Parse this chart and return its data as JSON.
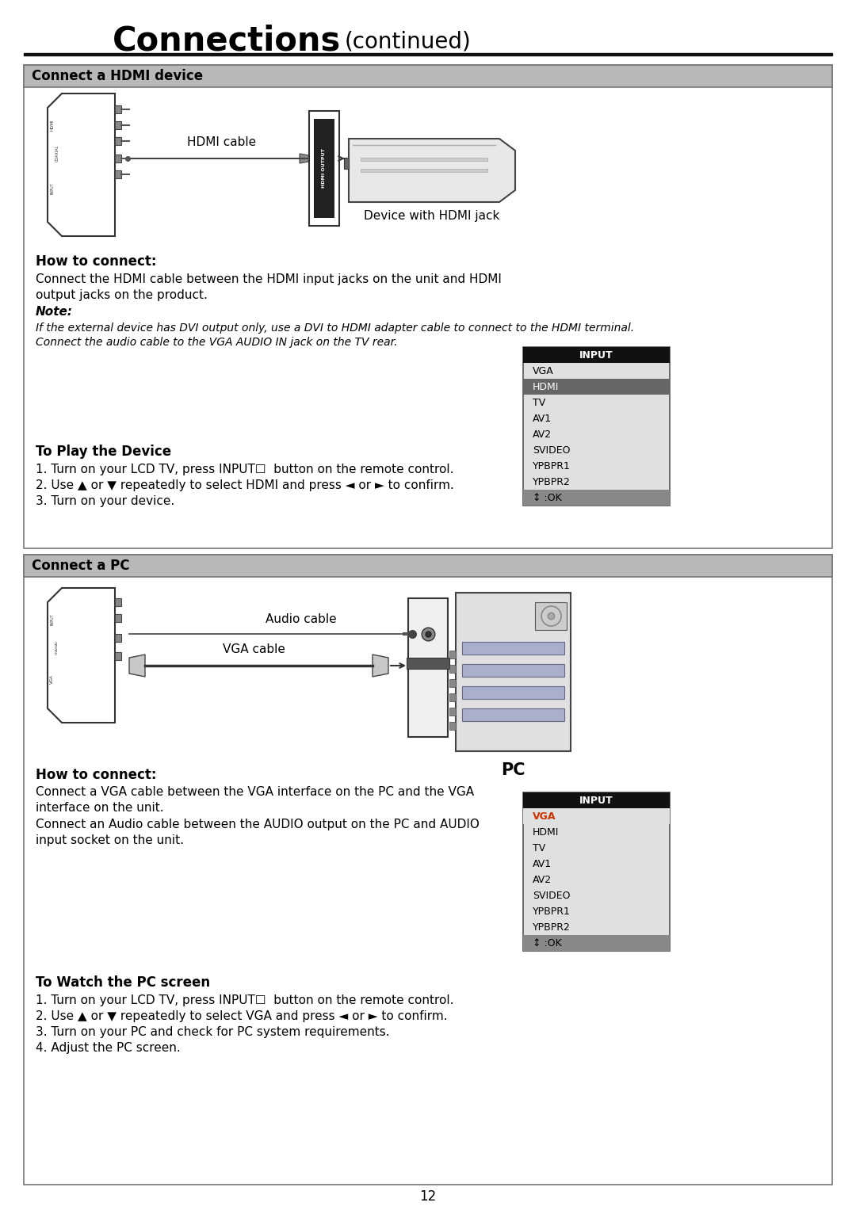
{
  "title_main": "Connections",
  "title_sub": "(continued)",
  "section1_header": "Connect a HDMI device",
  "section2_header": "Connect a PC",
  "hdmi_cable_label": "HDMI cable",
  "device_label": "Device with HDMI jack",
  "how_to_connect1_title": "How to connect:",
  "how_to_connect1_line1": "Connect the HDMI cable between the HDMI input jacks on the unit and HDMI",
  "how_to_connect1_line2": "output jacks on the product.",
  "note_title": "Note:",
  "note_line1": "If the external device has DVI output only, use a DVI to HDMI adapter cable to connect to the HDMI terminal.",
  "note_line2": "Connect the audio cable to the VGA AUDIO IN jack on the TV rear.",
  "to_play_title": "To Play the Device",
  "to_play_step1": "1. Turn on your LCD TV, press INPUT☐  button on the remote control.",
  "to_play_step2": "2. Use ▲ or ▼ repeatedly to select HDMI and press ◄ or ► to confirm.",
  "to_play_step3": "3. Turn on your device.",
  "input_items": [
    "INPUT",
    "VGA",
    "HDMI",
    "TV",
    "AV1",
    "AV2",
    "SVIDEO",
    "YPBPR1",
    "YPBPR2",
    "↕ :OK"
  ],
  "hdmi_highlight": "HDMI",
  "vga_highlight": "VGA",
  "audio_cable_label": "Audio cable",
  "vga_cable_label": "VGA cable",
  "pc_label": "PC",
  "how_to_connect2_title": "How to connect:",
  "how_to_connect2_line1": "Connect a VGA cable between the VGA interface on the PC and the VGA",
  "how_to_connect2_line2": "interface on the unit.",
  "how_to_connect2_line3": "Connect an Audio cable between the AUDIO output on the PC and AUDIO",
  "how_to_connect2_line4": "input socket on the unit.",
  "to_watch_title": "To Watch the PC screen",
  "to_watch_step1": "1. Turn on your LCD TV, press INPUT☐  button on the remote control.",
  "to_watch_step2": "2. Use ▲ or ▼ repeatedly to select VGA and press ◄ or ► to confirm.",
  "to_watch_step3": "3. Turn on your PC and check for PC system requirements.",
  "to_watch_step4": "4. Adjust the PC screen.",
  "page_number": "12",
  "bg_white": "#ffffff",
  "section_hdr_bg": "#b8b8b8",
  "section_border": "#888888",
  "input_hdr_bg": "#111111",
  "input_hdr_fg": "#ffffff",
  "input_highlight_hdmi_bg": "#666666",
  "input_highlight_hdmi_fg": "#ffffff",
  "input_highlight_vga_fg": "#cc3300",
  "input_ok_bg": "#888888",
  "input_ok_fg": "#000000",
  "input_menu_bg": "#e0e0e0",
  "input_normal_fg": "#000000"
}
